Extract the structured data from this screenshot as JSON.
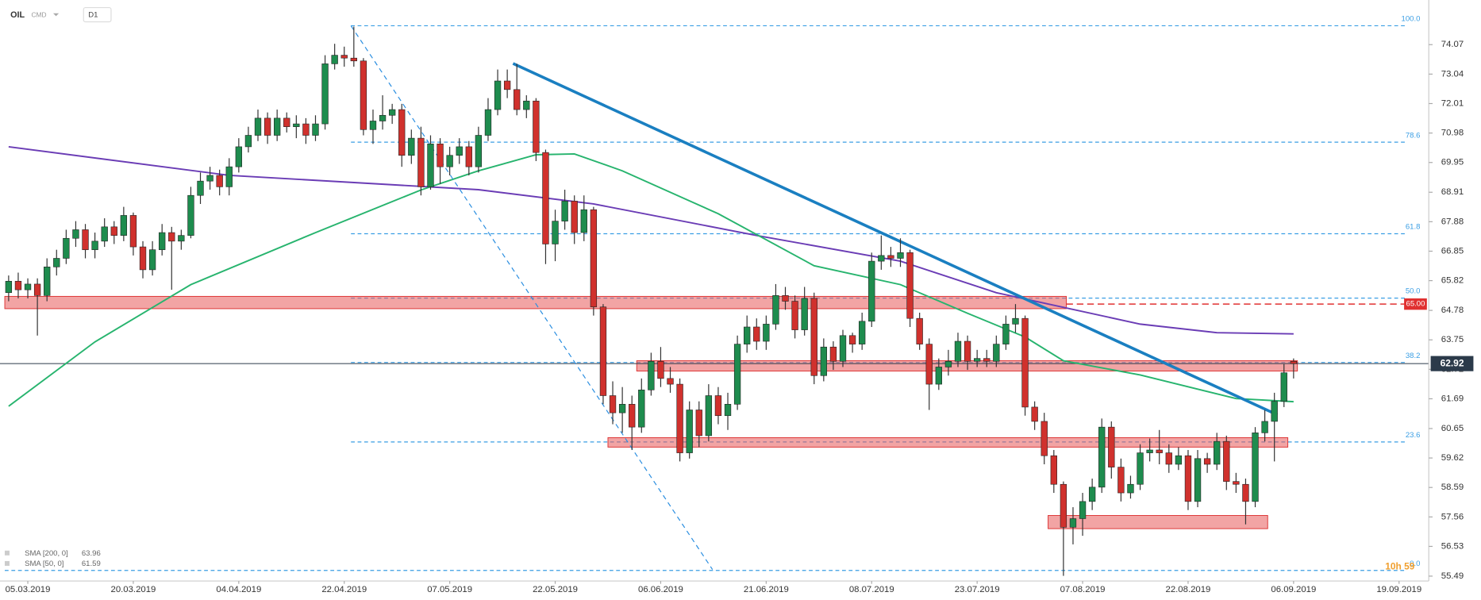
{
  "chart_data": {
    "type": "candlestick",
    "symbol": "OIL",
    "market": "CMD",
    "timeframe": "D1",
    "countdown": "10h 59",
    "up_color": "#1e8c4e",
    "down_color": "#d0312d",
    "xlim": [
      -0.9,
      148.1
    ],
    "ylim": [
      55.32,
      75.63
    ],
    "xticks": [
      {
        "value": 2,
        "label": "05.03.2019"
      },
      {
        "value": 13,
        "label": "20.03.2019"
      },
      {
        "value": 24,
        "label": "04.04.2019"
      },
      {
        "value": 35,
        "label": "22.04.2019"
      },
      {
        "value": 46,
        "label": "07.05.2019"
      },
      {
        "value": 57,
        "label": "22.05.2019"
      },
      {
        "value": 68,
        "label": "06.06.2019"
      },
      {
        "value": 79,
        "label": "21.06.2019"
      },
      {
        "value": 90,
        "label": "08.07.2019"
      },
      {
        "value": 101,
        "label": "23.07.2019"
      },
      {
        "value": 112,
        "label": "07.08.2019"
      },
      {
        "value": 123,
        "label": "22.08.2019"
      },
      {
        "value": 134,
        "label": "06.09.2019"
      },
      {
        "value": 145,
        "label": "19.09.2019"
      }
    ],
    "yticks": [
      74.07,
      73.04,
      72.01,
      70.98,
      69.95,
      68.91,
      67.88,
      66.85,
      65.82,
      64.78,
      63.75,
      62.72,
      61.69,
      60.65,
      59.62,
      58.59,
      57.56,
      56.53,
      55.49
    ],
    "ohlc": [
      [
        65.4,
        66.0,
        65.1,
        65.8
      ],
      [
        65.8,
        66.1,
        65.2,
        65.5
      ],
      [
        65.5,
        65.9,
        65.2,
        65.7
      ],
      [
        65.7,
        65.9,
        63.9,
        65.3
      ],
      [
        65.3,
        66.6,
        65.1,
        66.3
      ],
      [
        66.3,
        66.9,
        66.0,
        66.6
      ],
      [
        66.6,
        67.6,
        66.4,
        67.3
      ],
      [
        67.3,
        67.9,
        67.0,
        67.6
      ],
      [
        67.6,
        67.8,
        66.6,
        66.9
      ],
      [
        66.9,
        67.5,
        66.6,
        67.2
      ],
      [
        67.2,
        68.0,
        67.0,
        67.7
      ],
      [
        67.7,
        67.9,
        67.1,
        67.4
      ],
      [
        67.4,
        68.4,
        67.2,
        68.1
      ],
      [
        68.1,
        68.2,
        66.7,
        67.0
      ],
      [
        67.0,
        67.2,
        65.9,
        66.2
      ],
      [
        66.2,
        67.2,
        66.0,
        66.9
      ],
      [
        66.9,
        67.8,
        66.7,
        67.5
      ],
      [
        67.5,
        67.7,
        65.5,
        67.2
      ],
      [
        67.2,
        67.6,
        66.9,
        67.4
      ],
      [
        67.4,
        69.1,
        67.3,
        68.8
      ],
      [
        68.8,
        69.6,
        68.5,
        69.3
      ],
      [
        69.3,
        69.8,
        69.0,
        69.5
      ],
      [
        69.5,
        69.7,
        68.8,
        69.1
      ],
      [
        69.1,
        70.1,
        68.8,
        69.8
      ],
      [
        69.8,
        70.8,
        69.6,
        70.5
      ],
      [
        70.5,
        71.2,
        70.3,
        70.9
      ],
      [
        70.9,
        71.8,
        70.7,
        71.5
      ],
      [
        71.5,
        71.7,
        70.6,
        70.9
      ],
      [
        70.9,
        71.8,
        70.7,
        71.5
      ],
      [
        71.5,
        71.7,
        71.0,
        71.2
      ],
      [
        71.2,
        71.6,
        70.8,
        71.3
      ],
      [
        71.3,
        71.5,
        70.6,
        70.9
      ],
      [
        70.9,
        71.6,
        70.7,
        71.3
      ],
      [
        71.3,
        73.7,
        71.1,
        73.4
      ],
      [
        73.4,
        74.1,
        73.2,
        73.7
      ],
      [
        73.7,
        74.0,
        73.3,
        73.6
      ],
      [
        73.6,
        74.7,
        73.3,
        73.5
      ],
      [
        73.5,
        73.6,
        70.9,
        71.1
      ],
      [
        71.1,
        71.8,
        70.6,
        71.4
      ],
      [
        71.4,
        72.3,
        71.1,
        71.6
      ],
      [
        71.6,
        72.0,
        71.3,
        71.8
      ],
      [
        71.8,
        72.0,
        69.8,
        70.2
      ],
      [
        70.2,
        71.1,
        69.9,
        70.8
      ],
      [
        70.8,
        71.2,
        68.8,
        69.1
      ],
      [
        69.1,
        70.9,
        69.0,
        70.6
      ],
      [
        70.6,
        70.8,
        69.2,
        69.8
      ],
      [
        69.8,
        70.5,
        69.5,
        70.2
      ],
      [
        70.2,
        70.8,
        69.9,
        70.5
      ],
      [
        70.5,
        70.7,
        69.5,
        69.8
      ],
      [
        69.8,
        71.2,
        69.6,
        70.9
      ],
      [
        70.9,
        72.2,
        70.7,
        71.8
      ],
      [
        71.8,
        73.2,
        71.6,
        72.8
      ],
      [
        72.8,
        73.2,
        72.2,
        72.5
      ],
      [
        72.5,
        73.4,
        71.6,
        71.8
      ],
      [
        71.8,
        72.3,
        71.5,
        72.1
      ],
      [
        72.1,
        72.2,
        70.0,
        70.3
      ],
      [
        70.3,
        70.4,
        66.4,
        67.1
      ],
      [
        67.1,
        68.3,
        66.5,
        67.9
      ],
      [
        67.9,
        69.0,
        67.6,
        68.6
      ],
      [
        68.6,
        68.8,
        67.1,
        67.5
      ],
      [
        67.5,
        68.8,
        67.2,
        68.3
      ],
      [
        68.3,
        68.4,
        64.6,
        64.9
      ],
      [
        64.9,
        65.0,
        61.5,
        61.8
      ],
      [
        61.8,
        62.3,
        60.8,
        61.2
      ],
      [
        61.2,
        62.1,
        60.5,
        61.5
      ],
      [
        61.5,
        61.8,
        59.9,
        60.7
      ],
      [
        60.7,
        62.4,
        60.5,
        62.0
      ],
      [
        62.0,
        63.3,
        61.8,
        63.0
      ],
      [
        63.0,
        63.5,
        62.1,
        62.4
      ],
      [
        62.4,
        62.8,
        61.9,
        62.2
      ],
      [
        62.2,
        62.4,
        59.5,
        59.8
      ],
      [
        59.8,
        61.6,
        59.6,
        61.3
      ],
      [
        61.3,
        61.6,
        60.0,
        60.4
      ],
      [
        60.4,
        62.2,
        60.2,
        61.8
      ],
      [
        61.8,
        62.1,
        60.8,
        61.1
      ],
      [
        61.1,
        61.9,
        60.6,
        61.5
      ],
      [
        61.5,
        63.9,
        61.3,
        63.6
      ],
      [
        63.6,
        64.6,
        63.3,
        64.2
      ],
      [
        64.2,
        64.5,
        63.4,
        63.7
      ],
      [
        63.7,
        64.6,
        63.4,
        64.3
      ],
      [
        64.3,
        65.7,
        64.1,
        65.3
      ],
      [
        65.3,
        65.6,
        64.8,
        65.1
      ],
      [
        65.1,
        65.3,
        63.8,
        64.1
      ],
      [
        64.1,
        65.6,
        63.9,
        65.2
      ],
      [
        65.2,
        65.4,
        62.2,
        62.5
      ],
      [
        62.5,
        63.8,
        62.3,
        63.5
      ],
      [
        63.5,
        63.7,
        62.7,
        63.0
      ],
      [
        63.0,
        64.1,
        62.8,
        63.9
      ],
      [
        63.9,
        64.0,
        63.3,
        63.6
      ],
      [
        63.6,
        64.7,
        63.4,
        64.4
      ],
      [
        64.4,
        66.8,
        64.2,
        66.5
      ],
      [
        66.5,
        67.4,
        66.2,
        66.7
      ],
      [
        66.7,
        67.0,
        66.3,
        66.6
      ],
      [
        66.6,
        67.3,
        66.3,
        66.8
      ],
      [
        66.8,
        66.9,
        64.2,
        64.5
      ],
      [
        64.5,
        64.7,
        63.4,
        63.6
      ],
      [
        63.6,
        63.8,
        61.3,
        62.2
      ],
      [
        62.2,
        63.1,
        62.0,
        62.8
      ],
      [
        62.8,
        63.4,
        62.5,
        63.0
      ],
      [
        63.0,
        64.0,
        62.8,
        63.7
      ],
      [
        63.7,
        63.9,
        62.7,
        63.0
      ],
      [
        63.0,
        63.4,
        62.8,
        63.1
      ],
      [
        63.1,
        63.4,
        62.8,
        63.0
      ],
      [
        63.0,
        63.9,
        62.8,
        63.6
      ],
      [
        63.6,
        64.6,
        63.4,
        64.3
      ],
      [
        64.3,
        65.0,
        64.0,
        64.5
      ],
      [
        64.5,
        64.6,
        61.1,
        61.4
      ],
      [
        61.4,
        61.6,
        60.6,
        60.9
      ],
      [
        60.9,
        61.2,
        59.4,
        59.7
      ],
      [
        59.7,
        59.9,
        58.4,
        58.7
      ],
      [
        58.7,
        58.8,
        55.5,
        57.2
      ],
      [
        57.2,
        57.9,
        56.6,
        57.5
      ],
      [
        57.5,
        58.4,
        56.9,
        58.1
      ],
      [
        58.1,
        58.9,
        57.8,
        58.6
      ],
      [
        58.6,
        61.0,
        58.4,
        60.7
      ],
      [
        60.7,
        60.9,
        58.9,
        59.3
      ],
      [
        59.3,
        59.6,
        58.1,
        58.4
      ],
      [
        58.4,
        59.0,
        58.2,
        58.7
      ],
      [
        58.7,
        60.1,
        58.5,
        59.8
      ],
      [
        59.8,
        60.3,
        59.5,
        59.9
      ],
      [
        59.9,
        60.6,
        59.4,
        59.8
      ],
      [
        59.8,
        60.1,
        59.1,
        59.4
      ],
      [
        59.4,
        60.0,
        59.2,
        59.7
      ],
      [
        59.7,
        59.9,
        57.8,
        58.1
      ],
      [
        58.1,
        59.9,
        57.9,
        59.6
      ],
      [
        59.6,
        59.8,
        59.1,
        59.4
      ],
      [
        59.4,
        60.5,
        59.2,
        60.2
      ],
      [
        60.2,
        60.4,
        58.5,
        58.8
      ],
      [
        58.8,
        59.1,
        58.4,
        58.7
      ],
      [
        58.7,
        58.9,
        57.3,
        58.1
      ],
      [
        58.1,
        60.7,
        57.9,
        60.5
      ],
      [
        60.5,
        61.3,
        60.2,
        60.9
      ],
      [
        60.9,
        61.9,
        59.5,
        61.6
      ],
      [
        61.6,
        62.9,
        61.4,
        62.6
      ],
      [
        63.0,
        63.1,
        62.4,
        62.92
      ]
    ],
    "series": [
      {
        "name": "SMA [200, 0]",
        "last": 63.96,
        "color": "#6a3cb5",
        "x": [
          0,
          23,
          49,
          61,
          78,
          93,
          103,
          118,
          126,
          134
        ],
        "values": [
          70.5,
          69.5,
          69.0,
          68.5,
          67.4,
          66.5,
          65.4,
          64.3,
          64.0,
          63.96
        ]
      },
      {
        "name": "SMA [50, 0]",
        "last": 61.59,
        "color": "#27b46e",
        "x": [
          0,
          9,
          19,
          32,
          43,
          49,
          55,
          59,
          64,
          74,
          84,
          93,
          100,
          106,
          110,
          118,
          128,
          134
        ],
        "values": [
          61.43,
          63.68,
          65.68,
          67.5,
          68.99,
          69.66,
          70.22,
          70.25,
          69.66,
          68.16,
          66.34,
          65.68,
          64.68,
          63.85,
          63.02,
          62.52,
          61.7,
          61.59
        ]
      }
    ],
    "fib_levels": [
      {
        "label": "100.0",
        "price": 74.73
      },
      {
        "label": "78.6",
        "price": 70.66
      },
      {
        "label": "61.8",
        "price": 67.46
      },
      {
        "label": "50.0",
        "price": 65.21
      },
      {
        "label": "38.2",
        "price": 62.96
      },
      {
        "label": "23.6",
        "price": 60.18
      },
      {
        "label": "0.0",
        "price": 55.69
      }
    ],
    "alert_level": {
      "value": 65,
      "label": "65.00"
    },
    "last_price": 62.92,
    "zones": [
      {
        "from": -0.4,
        "to": 110.3,
        "low": 64.84,
        "high": 65.27
      },
      {
        "from": 65.5,
        "to": 134.4,
        "low": 62.66,
        "high": 63.02
      },
      {
        "from": 62.5,
        "to": 133.4,
        "low": 60.0,
        "high": 60.33
      },
      {
        "from": 108.4,
        "to": 131.3,
        "low": 57.15,
        "high": 57.61
      }
    ],
    "trendlines": [
      {
        "x": [
          52.6,
          132.3
        ],
        "values": [
          73.41,
          61.13
        ],
        "color": "#1a7fc1",
        "dashed": false
      },
      {
        "x": [
          35.7,
          73.4
        ],
        "values": [
          74.73,
          55.72
        ],
        "color": "#2a8ee0",
        "dashed": true
      }
    ]
  }
}
